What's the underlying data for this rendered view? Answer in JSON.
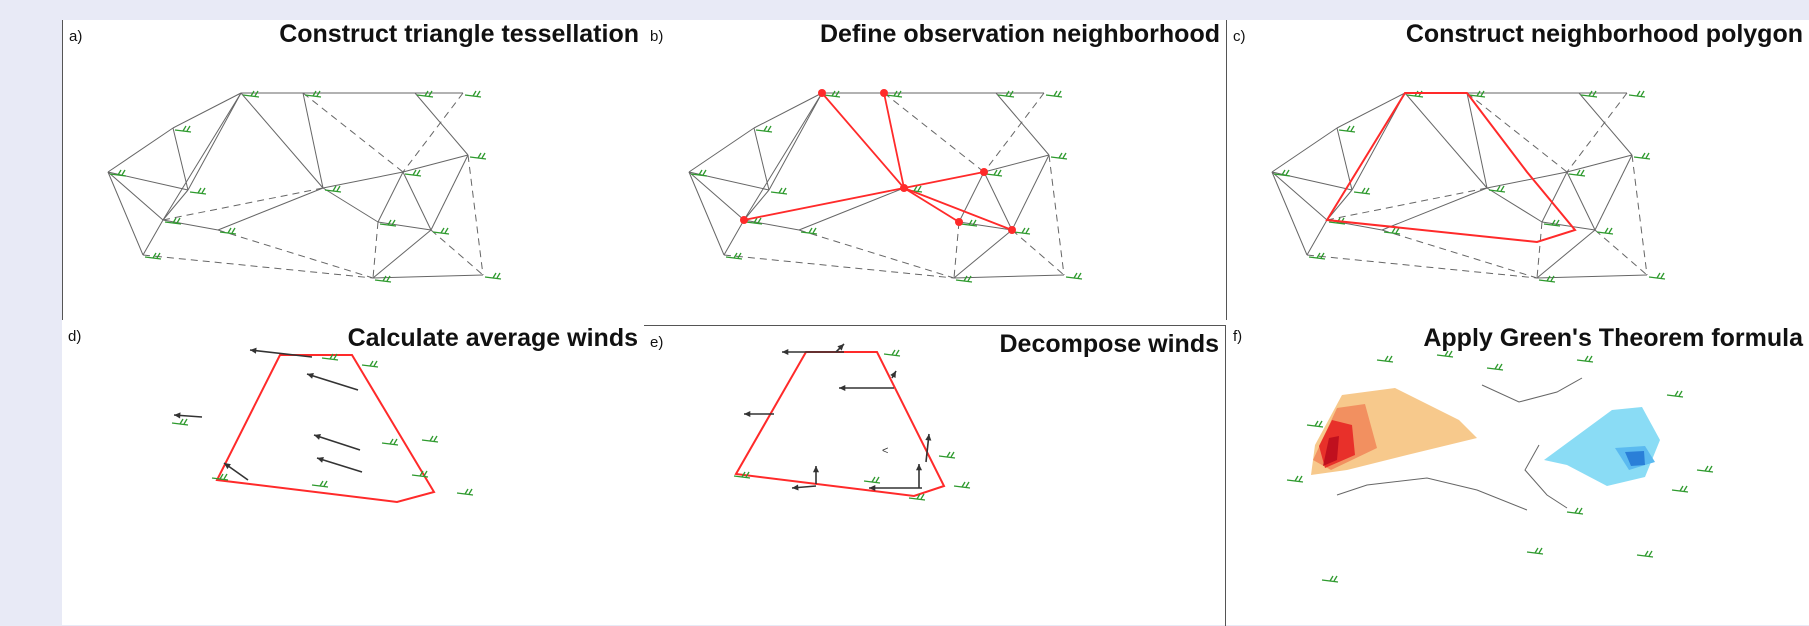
{
  "panels": {
    "a": {
      "letter": "a)",
      "title": "Construct triangle tessellation"
    },
    "b": {
      "letter": "b)",
      "title": "Define observation neighborhood"
    },
    "c": {
      "letter": "c)",
      "title": "Construct neighborhood polygon"
    },
    "d": {
      "letter": "d)",
      "title": "Calculate average winds"
    },
    "e": {
      "letter": "e)",
      "title": "Decompose winds"
    },
    "f": {
      "letter": "f)",
      "title": "Apply Green's Theorem formula"
    }
  },
  "colors": {
    "background": "#e8eaf6",
    "mesh": "#666666",
    "highlight": "#ff2a2a",
    "wind_barb": "#2e9a2e",
    "wind_arrow": "#333333",
    "convergence": [
      "#f7c98c",
      "#f29060",
      "#e8302a",
      "#c0101e"
    ],
    "divergence": [
      "#8adcf5",
      "#5bbaf0",
      "#2a7fd8"
    ]
  },
  "icons": {
    "wind_barb": "wind-barb-icon",
    "wind_arrow": "wind-arrow-icon",
    "station": "observation-station-icon"
  }
}
